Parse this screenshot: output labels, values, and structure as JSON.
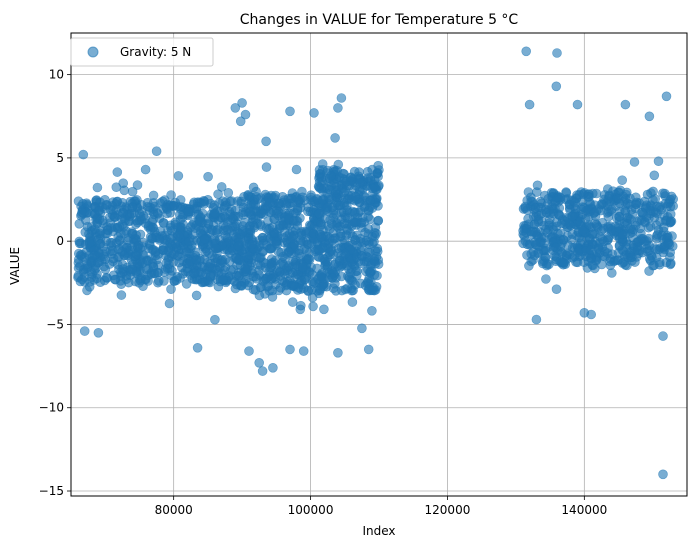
{
  "chart_data": {
    "type": "scatter",
    "title": "Changes in VALUE for Temperature 5 °C",
    "xlabel": "Index",
    "ylabel": "VALUE",
    "xlim": [
      65000,
      155000
    ],
    "ylim": [
      -15.3,
      12.5
    ],
    "x_ticks": [
      80000,
      100000,
      120000,
      140000
    ],
    "y_ticks": [
      -15,
      -10,
      -5,
      0,
      5,
      10
    ],
    "grid": true,
    "legend": {
      "position": "top-left"
    },
    "color": "#1f77b4",
    "opacity": 0.6,
    "series": [
      {
        "name": "Gravity: 5 N",
        "clusters": [
          {
            "x_range": [
              66000,
              89000
            ],
            "core_range": [
              -2.5,
              2.5
            ],
            "spread_range": [
              -4.8,
              4.3
            ],
            "count": 750
          },
          {
            "x_range": [
              89000,
              101000
            ],
            "core_range": [
              -3.0,
              2.8
            ],
            "spread_range": [
              -5.5,
              5.0
            ],
            "count": 480
          },
          {
            "x_range": [
              101000,
              110000
            ],
            "core_range": [
              -3.0,
              4.3
            ],
            "spread_range": [
              -5.5,
              6.2
            ],
            "count": 450
          },
          {
            "x_range": [
              131000,
              153000
            ],
            "core_range": [
              -1.5,
              3.0
            ],
            "spread_range": [
              -3.2,
              4.8
            ],
            "count": 600
          }
        ],
        "outliers": [
          {
            "x": 131500,
            "y": 11.4
          },
          {
            "x": 136000,
            "y": 11.3
          },
          {
            "x": 135900,
            "y": 9.3
          },
          {
            "x": 132000,
            "y": 8.2
          },
          {
            "x": 152000,
            "y": 8.7
          },
          {
            "x": 149500,
            "y": 7.5
          },
          {
            "x": 146000,
            "y": 8.2
          },
          {
            "x": 139000,
            "y": 8.2
          },
          {
            "x": 104500,
            "y": 8.6
          },
          {
            "x": 104000,
            "y": 8.0
          },
          {
            "x": 89000,
            "y": 8.0
          },
          {
            "x": 90000,
            "y": 8.3
          },
          {
            "x": 90500,
            "y": 7.6
          },
          {
            "x": 89800,
            "y": 7.2
          },
          {
            "x": 100500,
            "y": 7.7
          },
          {
            "x": 97000,
            "y": 7.8
          },
          {
            "x": 93500,
            "y": 6.0
          },
          {
            "x": 77500,
            "y": 5.4
          },
          {
            "x": 66800,
            "y": 5.2
          },
          {
            "x": 67000,
            "y": -5.4
          },
          {
            "x": 69000,
            "y": -5.5
          },
          {
            "x": 83500,
            "y": -6.4
          },
          {
            "x": 91000,
            "y": -6.6
          },
          {
            "x": 92500,
            "y": -7.3
          },
          {
            "x": 93000,
            "y": -7.8
          },
          {
            "x": 94500,
            "y": -7.6
          },
          {
            "x": 97000,
            "y": -6.5
          },
          {
            "x": 99000,
            "y": -6.6
          },
          {
            "x": 104000,
            "y": -6.7
          },
          {
            "x": 108500,
            "y": -6.5
          },
          {
            "x": 133000,
            "y": -4.7
          },
          {
            "x": 140000,
            "y": -4.3
          },
          {
            "x": 141000,
            "y": -4.4
          },
          {
            "x": 151500,
            "y": -5.7
          },
          {
            "x": 151500,
            "y": -14.0
          }
        ]
      }
    ]
  }
}
